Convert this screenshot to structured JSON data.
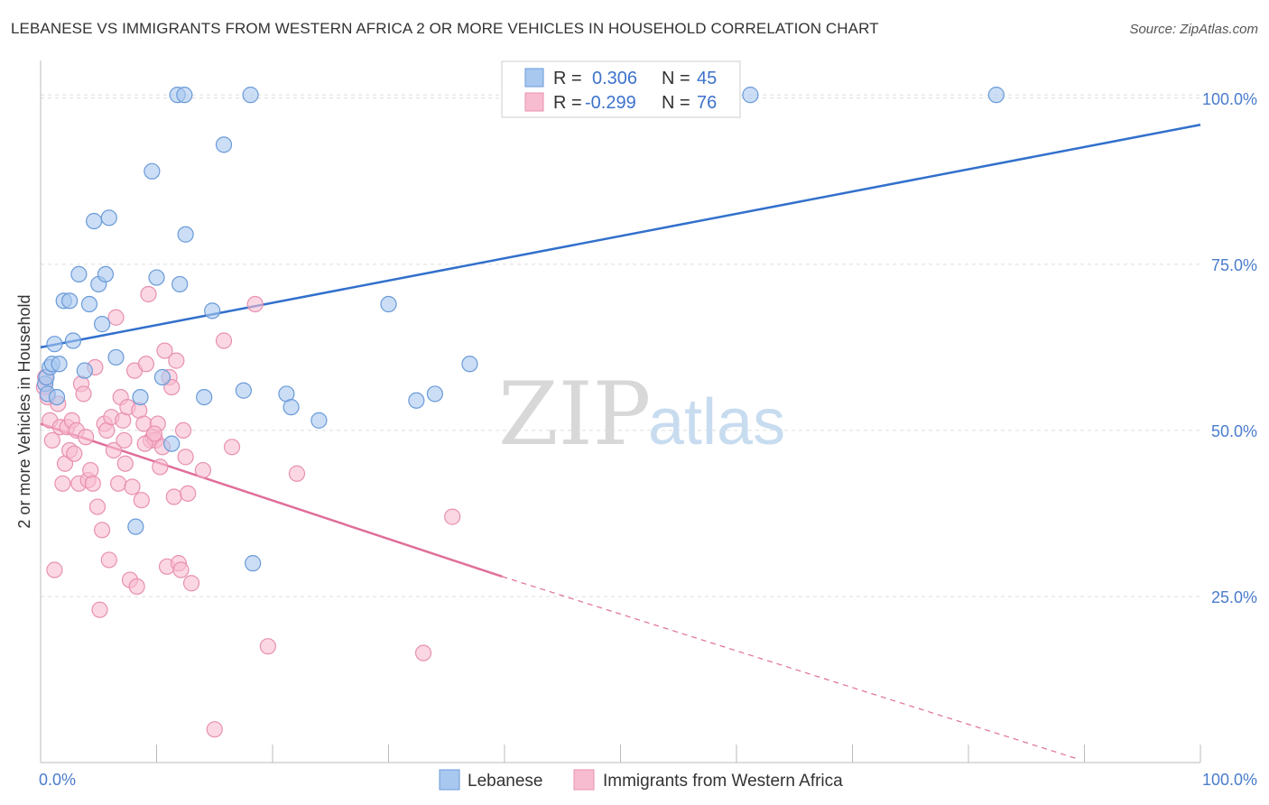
{
  "title": "LEBANESE VS IMMIGRANTS FROM WESTERN AFRICA 2 OR MORE VEHICLES IN HOUSEHOLD CORRELATION CHART",
  "source": "Source: ZipAtlas.com",
  "watermark": {
    "zip": "ZIP",
    "atlas": "atlas"
  },
  "colors": {
    "lebanese_fill": "#a8c8f0",
    "lebanese_stroke": "#6a9ad8",
    "lebanese_line": "#3270cc",
    "wa_fill": "#f8bcd0",
    "wa_stroke": "#e890b0",
    "wa_line": "#e06e9a",
    "grid": "#dddddd",
    "tick_label": "#4a7ccc"
  },
  "legend": {
    "rows": [
      {
        "r_label": "R =",
        "r_value": "0.306",
        "n_label": "N =",
        "n_value": "45"
      },
      {
        "r_label": "R =",
        "r_value": "-0.299",
        "n_label": "N =",
        "n_value": "76"
      }
    ]
  },
  "chart_data": {
    "type": "scatter",
    "title": "LEBANESE VS IMMIGRANTS FROM WESTERN AFRICA 2 OR MORE VEHICLES IN HOUSEHOLD CORRELATION CHART",
    "xlabel": "",
    "ylabel": "2 or more Vehicles in Household",
    "xlim": [
      0,
      100
    ],
    "ylim": [
      0,
      105
    ],
    "x_tick_labels": [
      "0.0%",
      "100.0%"
    ],
    "y_ticks": [
      25,
      50,
      75,
      100
    ],
    "y_tick_labels": [
      "25.0%",
      "50.0%",
      "75.0%",
      "100.0%"
    ],
    "grid": true,
    "legend_position": "top-center",
    "series": [
      {
        "name": "Lebanese",
        "points": [
          [
            0.4,
            57.0
          ],
          [
            0.5,
            58.0
          ],
          [
            0.6,
            55.5
          ],
          [
            0.8,
            59.5
          ],
          [
            1.0,
            60.0
          ],
          [
            1.2,
            63.0
          ],
          [
            1.4,
            55.0
          ],
          [
            1.6,
            60.0
          ],
          [
            2.0,
            69.5
          ],
          [
            2.5,
            69.5
          ],
          [
            2.8,
            63.5
          ],
          [
            3.3,
            73.5
          ],
          [
            3.8,
            59.0
          ],
          [
            4.2,
            69.0
          ],
          [
            4.6,
            81.5
          ],
          [
            5.0,
            72.0
          ],
          [
            5.3,
            66.0
          ],
          [
            5.6,
            73.5
          ],
          [
            5.9,
            82.0
          ],
          [
            6.5,
            61.0
          ],
          [
            8.2,
            35.5
          ],
          [
            8.6,
            55.0
          ],
          [
            9.6,
            89.0
          ],
          [
            10.0,
            73.0
          ],
          [
            10.5,
            58.0
          ],
          [
            11.3,
            48.0
          ],
          [
            12.0,
            72.0
          ],
          [
            12.5,
            79.5
          ],
          [
            14.1,
            55.0
          ],
          [
            14.8,
            68.0
          ],
          [
            15.8,
            93.0
          ],
          [
            17.5,
            56.0
          ],
          [
            18.3,
            30.0
          ],
          [
            21.2,
            55.5
          ],
          [
            21.6,
            53.5
          ],
          [
            24.0,
            51.5
          ],
          [
            30.0,
            69.0
          ],
          [
            32.4,
            54.5
          ],
          [
            34.0,
            55.5
          ],
          [
            37.0,
            60.0
          ],
          [
            11.8,
            100.5
          ],
          [
            12.4,
            100.5
          ],
          [
            18.1,
            100.5
          ],
          [
            61.2,
            100.5
          ],
          [
            82.4,
            100.5
          ]
        ],
        "trendline": {
          "x": [
            0,
            100
          ],
          "y": [
            62.5,
            96.0
          ]
        }
      },
      {
        "name": "Immigrants from Western Africa",
        "points": [
          [
            0.3,
            56.5
          ],
          [
            0.4,
            58.0
          ],
          [
            0.6,
            55.0
          ],
          [
            0.8,
            51.5
          ],
          [
            1.0,
            48.5
          ],
          [
            1.2,
            29.0
          ],
          [
            1.5,
            54.0
          ],
          [
            1.7,
            50.5
          ],
          [
            1.9,
            42.0
          ],
          [
            2.1,
            45.0
          ],
          [
            2.3,
            50.5
          ],
          [
            2.5,
            47.0
          ],
          [
            2.7,
            51.5
          ],
          [
            2.9,
            46.5
          ],
          [
            3.1,
            50.0
          ],
          [
            3.3,
            42.0
          ],
          [
            3.5,
            57.0
          ],
          [
            3.7,
            55.5
          ],
          [
            3.9,
            49.0
          ],
          [
            4.1,
            42.5
          ],
          [
            4.3,
            44.0
          ],
          [
            4.5,
            42.0
          ],
          [
            4.7,
            59.5
          ],
          [
            4.9,
            38.5
          ],
          [
            5.1,
            23.0
          ],
          [
            5.3,
            35.0
          ],
          [
            5.5,
            51.0
          ],
          [
            5.7,
            50.0
          ],
          [
            5.9,
            30.5
          ],
          [
            6.1,
            52.0
          ],
          [
            6.3,
            47.0
          ],
          [
            6.5,
            67.0
          ],
          [
            6.7,
            42.0
          ],
          [
            6.9,
            55.0
          ],
          [
            7.1,
            51.5
          ],
          [
            7.3,
            45.0
          ],
          [
            7.5,
            53.5
          ],
          [
            7.7,
            27.5
          ],
          [
            7.9,
            41.5
          ],
          [
            8.1,
            59.0
          ],
          [
            8.3,
            26.5
          ],
          [
            8.5,
            53.0
          ],
          [
            8.7,
            39.5
          ],
          [
            8.9,
            51.0
          ],
          [
            9.1,
            60.0
          ],
          [
            9.3,
            70.5
          ],
          [
            9.5,
            48.5
          ],
          [
            9.7,
            49.0
          ],
          [
            9.9,
            48.5
          ],
          [
            10.1,
            51.0
          ],
          [
            10.3,
            44.5
          ],
          [
            10.5,
            47.5
          ],
          [
            10.7,
            62.0
          ],
          [
            10.9,
            29.5
          ],
          [
            11.1,
            58.0
          ],
          [
            11.3,
            56.5
          ],
          [
            11.5,
            40.0
          ],
          [
            11.7,
            60.5
          ],
          [
            11.9,
            30.0
          ],
          [
            12.1,
            29.0
          ],
          [
            12.3,
            50.0
          ],
          [
            12.5,
            46.0
          ],
          [
            12.7,
            40.5
          ],
          [
            13.0,
            27.0
          ],
          [
            14.0,
            44.0
          ],
          [
            15.0,
            5.0
          ],
          [
            15.8,
            63.5
          ],
          [
            16.5,
            47.5
          ],
          [
            18.5,
            69.0
          ],
          [
            19.6,
            17.5
          ],
          [
            22.1,
            43.5
          ],
          [
            33.0,
            16.5
          ],
          [
            35.5,
            37.0
          ],
          [
            7.2,
            48.5
          ],
          [
            9.0,
            48.0
          ],
          [
            9.8,
            49.5
          ]
        ],
        "trendline": {
          "x": [
            0,
            39.8
          ],
          "y": [
            51.0,
            28.0
          ],
          "dashed_to": {
            "x": 89.5,
            "y": 0.5
          }
        }
      }
    ]
  },
  "bottom_legend": [
    {
      "label": "Lebanese"
    },
    {
      "label": "Immigrants from Western Africa"
    }
  ]
}
